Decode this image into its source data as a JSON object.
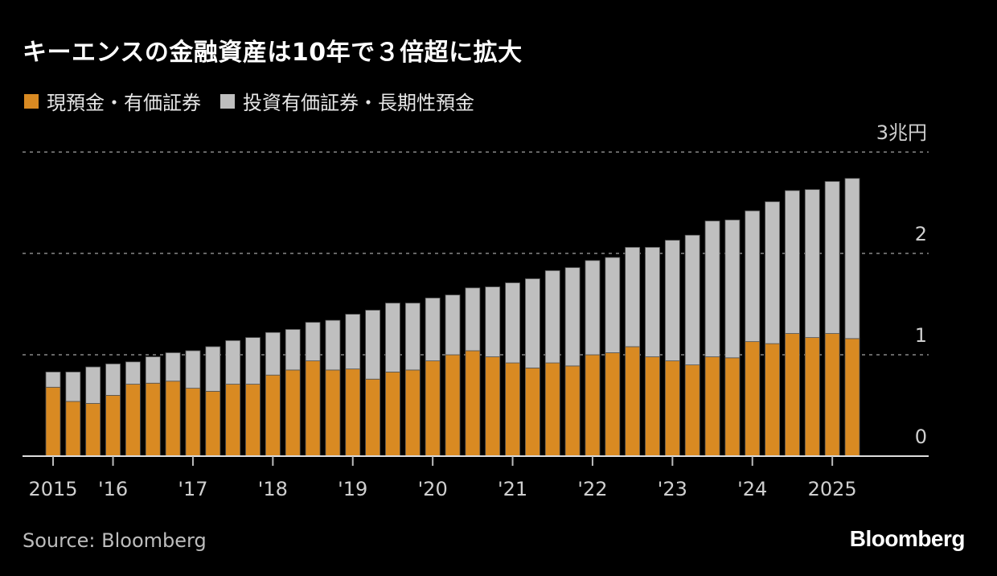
{
  "colors": {
    "cash": "#d98a22",
    "investments": "#bfbfbf",
    "background": "#000000",
    "grid": "#666666"
  },
  "source": "Source: Bloomberg",
  "logo": "Bloomberg",
  "chart_data": {
    "type": "bar",
    "stacked": true,
    "title": "キーエンスの金融資産は10年で３倍超に拡大",
    "ylabel": "兆円",
    "ylim": [
      0,
      3
    ],
    "yticks": [
      {
        "value": 0,
        "label": "0"
      },
      {
        "value": 1,
        "label": "1"
      },
      {
        "value": 2,
        "label": "2"
      },
      {
        "value": 3,
        "label": "3兆円"
      }
    ],
    "grid": true,
    "legend_position": "top-left",
    "xtick_labels": [
      {
        "index": 0,
        "label": "2015"
      },
      {
        "index": 3,
        "label": "'16"
      },
      {
        "index": 7,
        "label": "'17"
      },
      {
        "index": 11,
        "label": "'18"
      },
      {
        "index": 15,
        "label": "'19"
      },
      {
        "index": 19,
        "label": "'20"
      },
      {
        "index": 23,
        "label": "'21"
      },
      {
        "index": 27,
        "label": "'22"
      },
      {
        "index": 31,
        "label": "'23"
      },
      {
        "index": 35,
        "label": "'24"
      },
      {
        "index": 39,
        "label": "2025"
      }
    ],
    "series": [
      {
        "name": "現預金・有価証券",
        "color": "#d98a22",
        "values": [
          0.68,
          0.54,
          0.52,
          0.6,
          0.71,
          0.72,
          0.74,
          0.67,
          0.64,
          0.71,
          0.71,
          0.8,
          0.85,
          0.94,
          0.85,
          0.86,
          0.76,
          0.83,
          0.85,
          0.94,
          1.0,
          1.04,
          0.98,
          0.92,
          0.87,
          0.92,
          0.89,
          1.0,
          1.02,
          1.08,
          0.98,
          0.94,
          0.9,
          0.98,
          0.97,
          1.13,
          1.11,
          1.21,
          1.17,
          1.21,
          1.16
        ]
      },
      {
        "name": "投資有価証券・長期性預金",
        "color": "#bfbfbf",
        "values": [
          0.15,
          0.29,
          0.36,
          0.31,
          0.22,
          0.26,
          0.28,
          0.37,
          0.44,
          0.43,
          0.46,
          0.42,
          0.4,
          0.38,
          0.49,
          0.54,
          0.68,
          0.68,
          0.66,
          0.62,
          0.59,
          0.62,
          0.69,
          0.79,
          0.88,
          0.91,
          0.97,
          0.93,
          0.94,
          0.98,
          1.08,
          1.19,
          1.28,
          1.34,
          1.36,
          1.29,
          1.4,
          1.41,
          1.46,
          1.5,
          1.58
        ]
      }
    ]
  }
}
